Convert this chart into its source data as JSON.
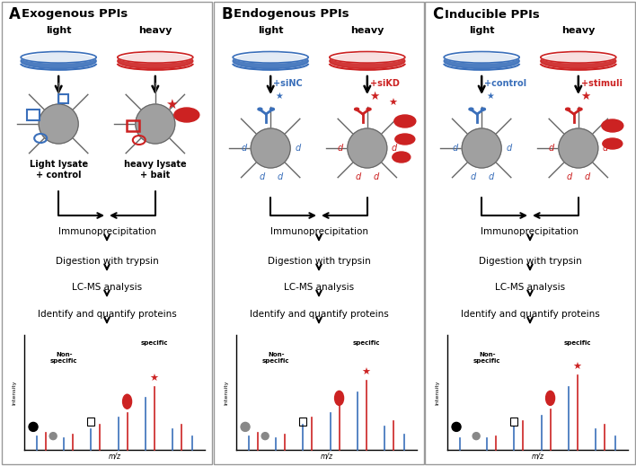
{
  "bg_color": "#ffffff",
  "panel_bg": "#ffffff",
  "border_color": "#aaaaaa",
  "blue": "#3a6fba",
  "red": "#cc2222",
  "dark": "#111111",
  "gray_cell": "#a0a0a0",
  "gray_dark": "#666666",
  "panel_titles": [
    "Exogenous PPIs",
    "Endogenous PPIs",
    "Inducible PPIs"
  ],
  "panel_labels": [
    "A",
    "B",
    "C"
  ],
  "steps": [
    "Immunoprecipitation",
    "Digestion with trypsin",
    "LC-MS analysis",
    "Identify and quantify proteins"
  ],
  "panel_B_annot": [
    "+siNC",
    "+siKD"
  ],
  "panel_C_annot": [
    "+control",
    "+stimuli"
  ],
  "panel_A_light_label": "Light lysate\n+ control",
  "panel_A_heavy_label": "heavy lysate\n+ bait"
}
